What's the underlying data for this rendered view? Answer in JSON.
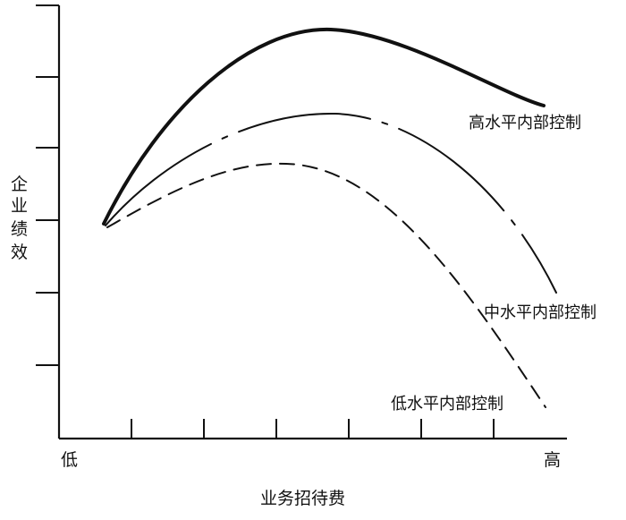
{
  "axes": {
    "y_title_chars": [
      "企",
      "业",
      "绩",
      "效"
    ],
    "x_title": "业务招待费",
    "x_low": "低",
    "x_high": "高"
  },
  "curves": {
    "high": {
      "label": "高水平内部控制",
      "style": "solid-thick"
    },
    "mid": {
      "label": "中水平内部控制",
      "style": "dash-dot"
    },
    "low": {
      "label": "低水平内部控制",
      "style": "dashed"
    }
  },
  "colors": {
    "ink": "#111111",
    "background": "#ffffff"
  }
}
